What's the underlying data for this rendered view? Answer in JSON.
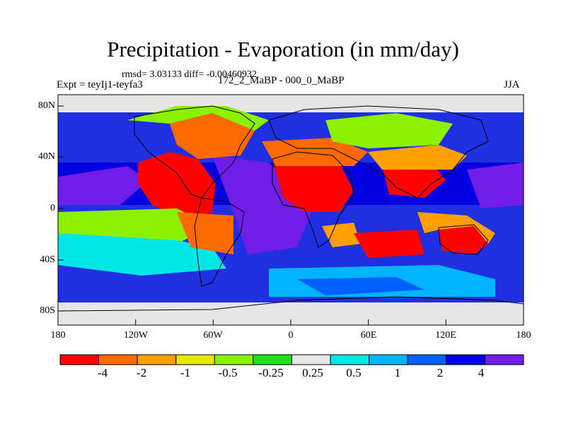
{
  "figure": {
    "title": "Precipitation - Evaporation (in mm/day)",
    "stats": "rmsd= 3.03133 diff= -0.00460932",
    "experiment": "Expt = teyIj1-teyfa3",
    "period": "172_2_MaBP - 000_0_MaBP",
    "season": "JJA"
  },
  "axes": {
    "lon_labels": [
      "180",
      "120W",
      "60W",
      "0",
      "60E",
      "120E",
      "180"
    ],
    "lat_labels": [
      "80N",
      "40N",
      "0",
      "40S",
      "80S"
    ]
  },
  "colorbar": {
    "labels": [
      "-4",
      "-2",
      "-1",
      "-0.5",
      "-0.25",
      "0.25",
      "0.5",
      "1",
      "2",
      "4"
    ],
    "colors": [
      "#ff0000",
      "#ff6a00",
      "#ffa000",
      "#e6e600",
      "#8cf000",
      "#20e020",
      "#e6e6e6",
      "#00e6e6",
      "#00b4ff",
      "#0060ff",
      "#0000e0",
      "#6e1ee6"
    ]
  }
}
